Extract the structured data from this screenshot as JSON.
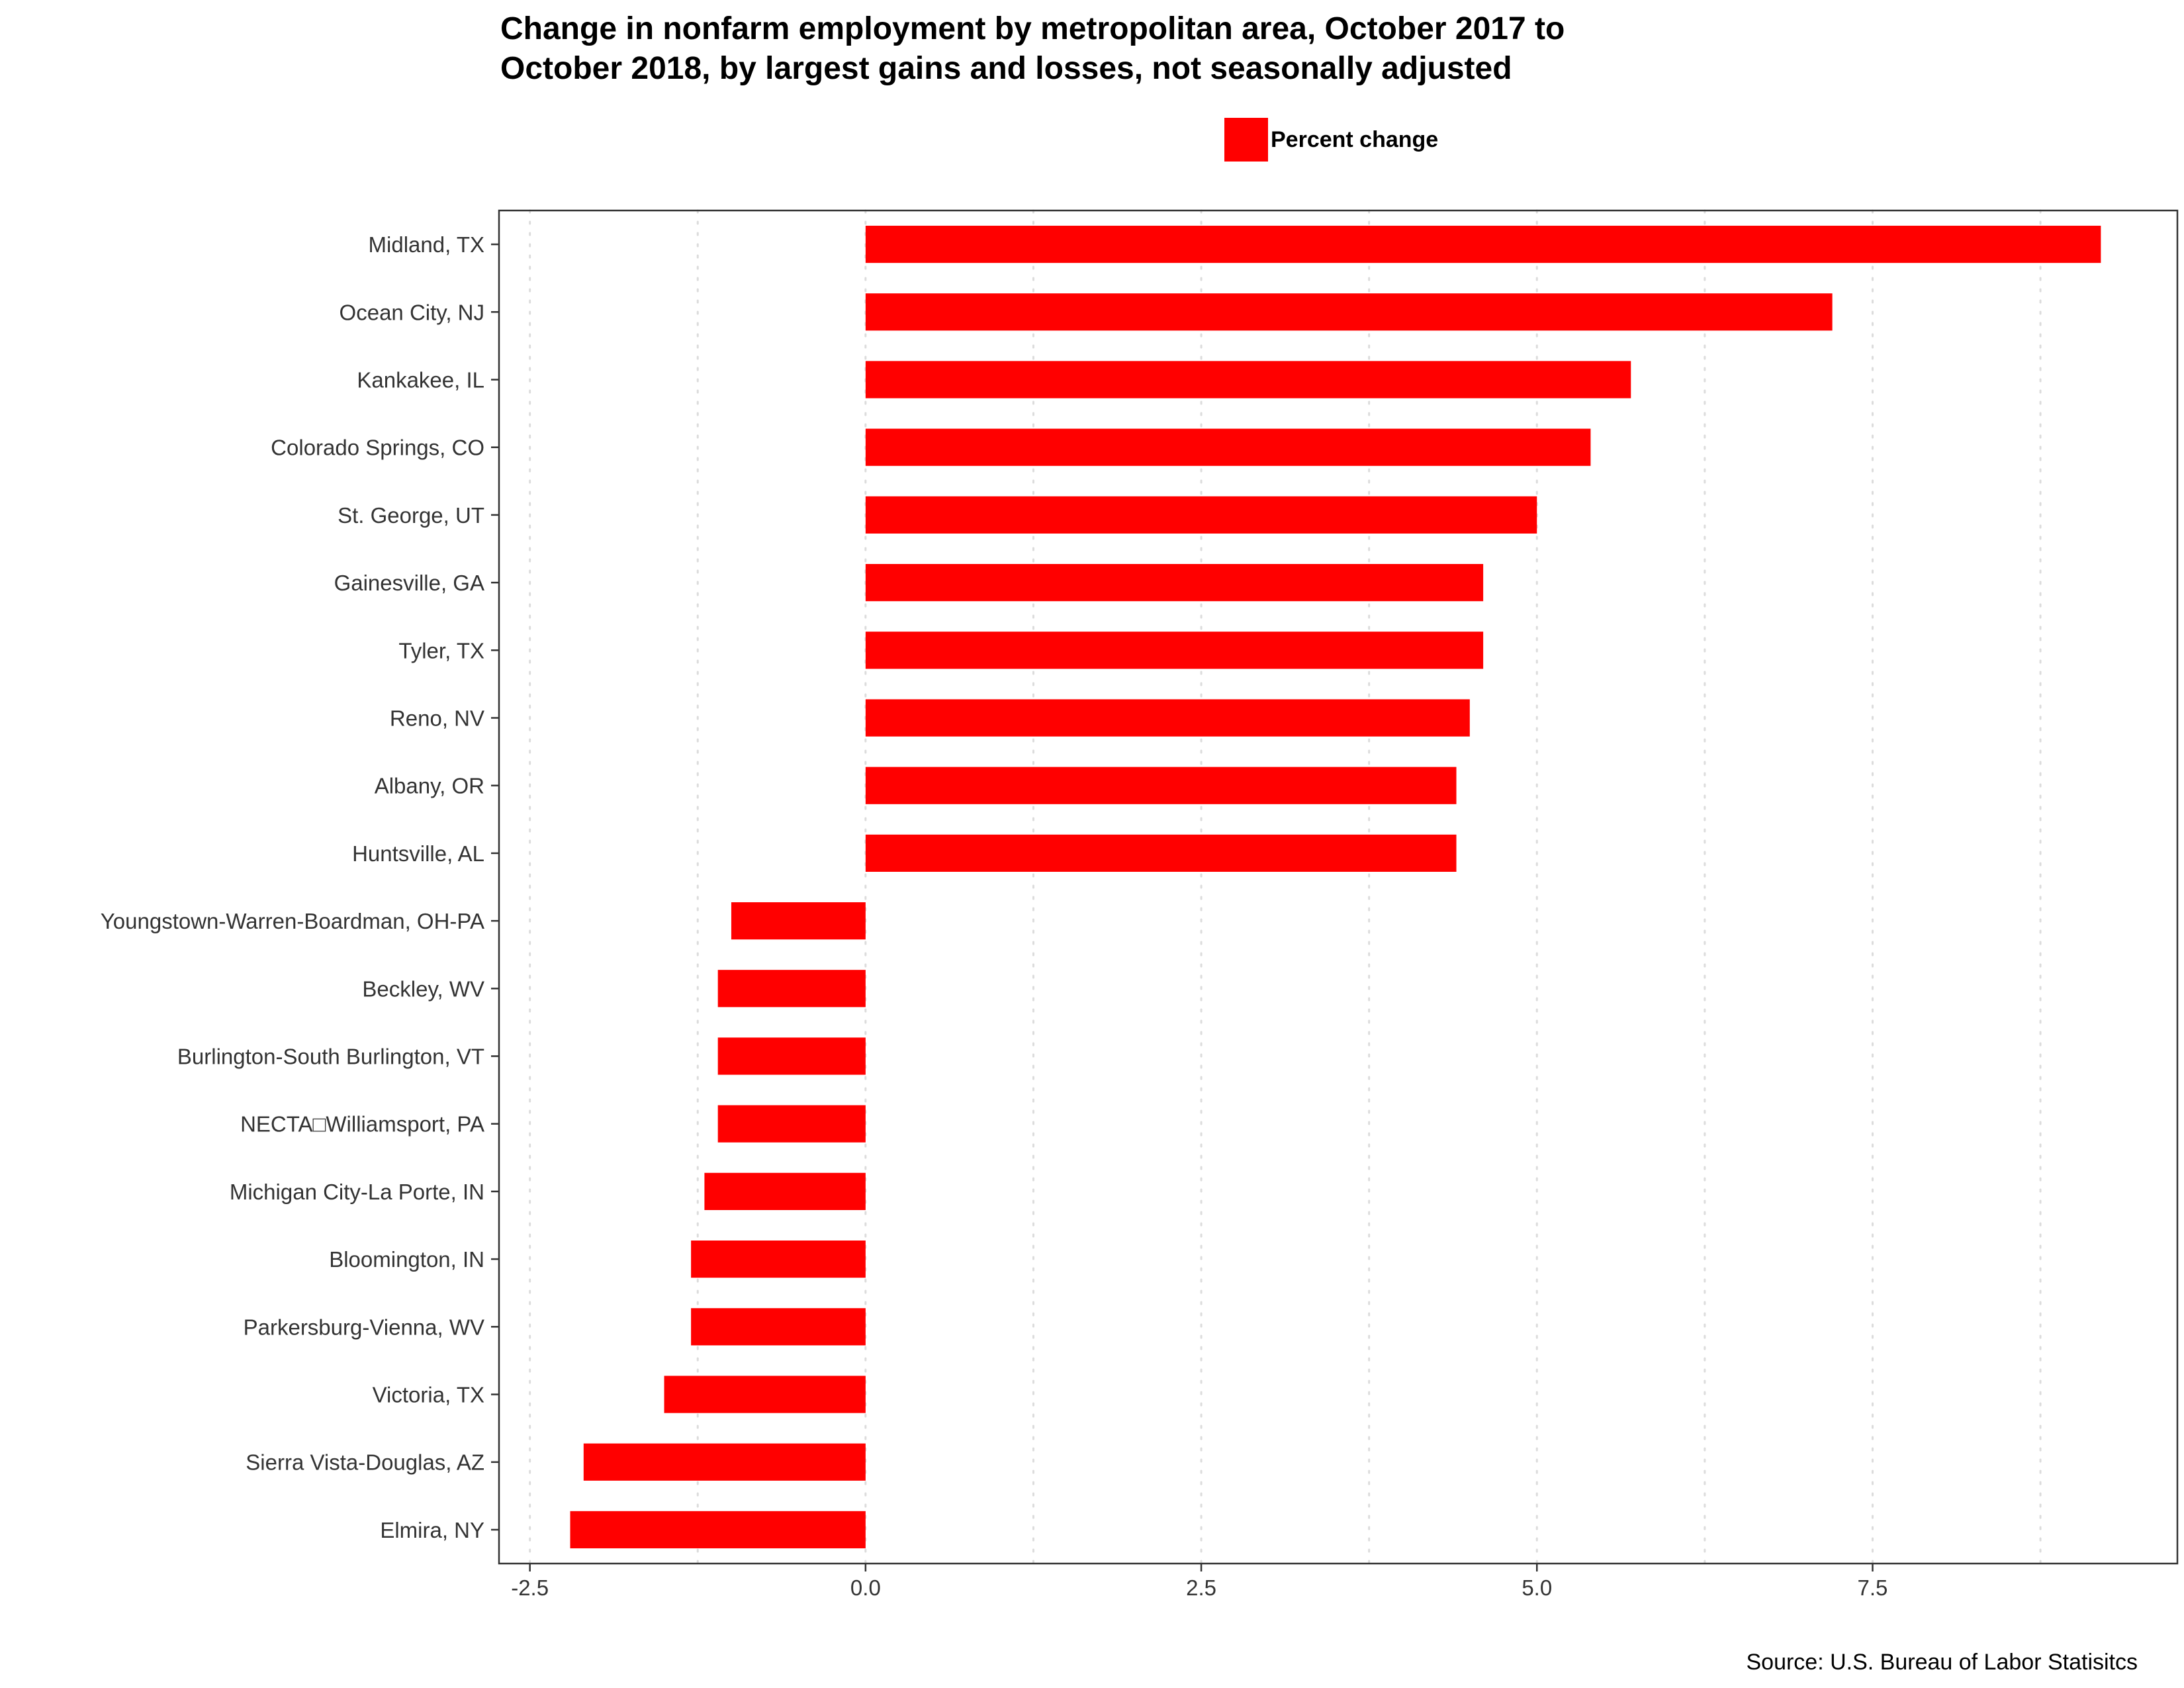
{
  "chart_data": {
    "type": "bar",
    "orientation": "horizontal",
    "title": "Change in nonfarm employment by metropolitan area, October 2017 to October 2018, by largest gains and losses, not seasonally adjusted",
    "title_lines": [
      "Change in nonfarm employment by metropolitan area, October 2017 to",
      "October 2018, by largest gains and losses, not seasonally adjusted"
    ],
    "xlabel": "",
    "ylabel": "",
    "categories": [
      "Midland, TX",
      "Ocean City, NJ",
      "Kankakee, IL",
      "Colorado Springs, CO",
      "St. George, UT",
      "Gainesville, GA",
      "Tyler, TX",
      "Reno, NV",
      "Albany, OR",
      "Huntsville, AL",
      "Youngstown-Warren-Boardman, OH-PA",
      "Beckley, WV",
      "Burlington-South Burlington, VT",
      "NECTA□Williamsport, PA",
      "Michigan City-La Porte, IN",
      "Bloomington, IN",
      "Parkersburg-Vienna, WV",
      "Victoria, TX",
      "Sierra Vista-Douglas, AZ",
      "Elmira, NY"
    ],
    "series": [
      {
        "name": "Percent change",
        "color": "#ff0000",
        "values": [
          9.2,
          7.2,
          5.7,
          5.4,
          5.0,
          4.6,
          4.6,
          4.5,
          4.4,
          4.4,
          -1.0,
          -1.1,
          -1.1,
          -1.1,
          -1.2,
          -1.3,
          -1.3,
          -1.5,
          -2.1,
          -2.2
        ]
      }
    ],
    "xlim": [
      -2.73,
      9.77
    ],
    "xticks": [
      -2.5,
      0.0,
      2.5,
      5.0,
      7.5
    ],
    "xtick_labels": [
      "-2.5",
      "0.0",
      "2.5",
      "5.0",
      "7.5"
    ],
    "grid": "vertical-dotted",
    "legend_position": "top",
    "source": "Source: U.S. Bureau of Labor Statisitcs"
  }
}
